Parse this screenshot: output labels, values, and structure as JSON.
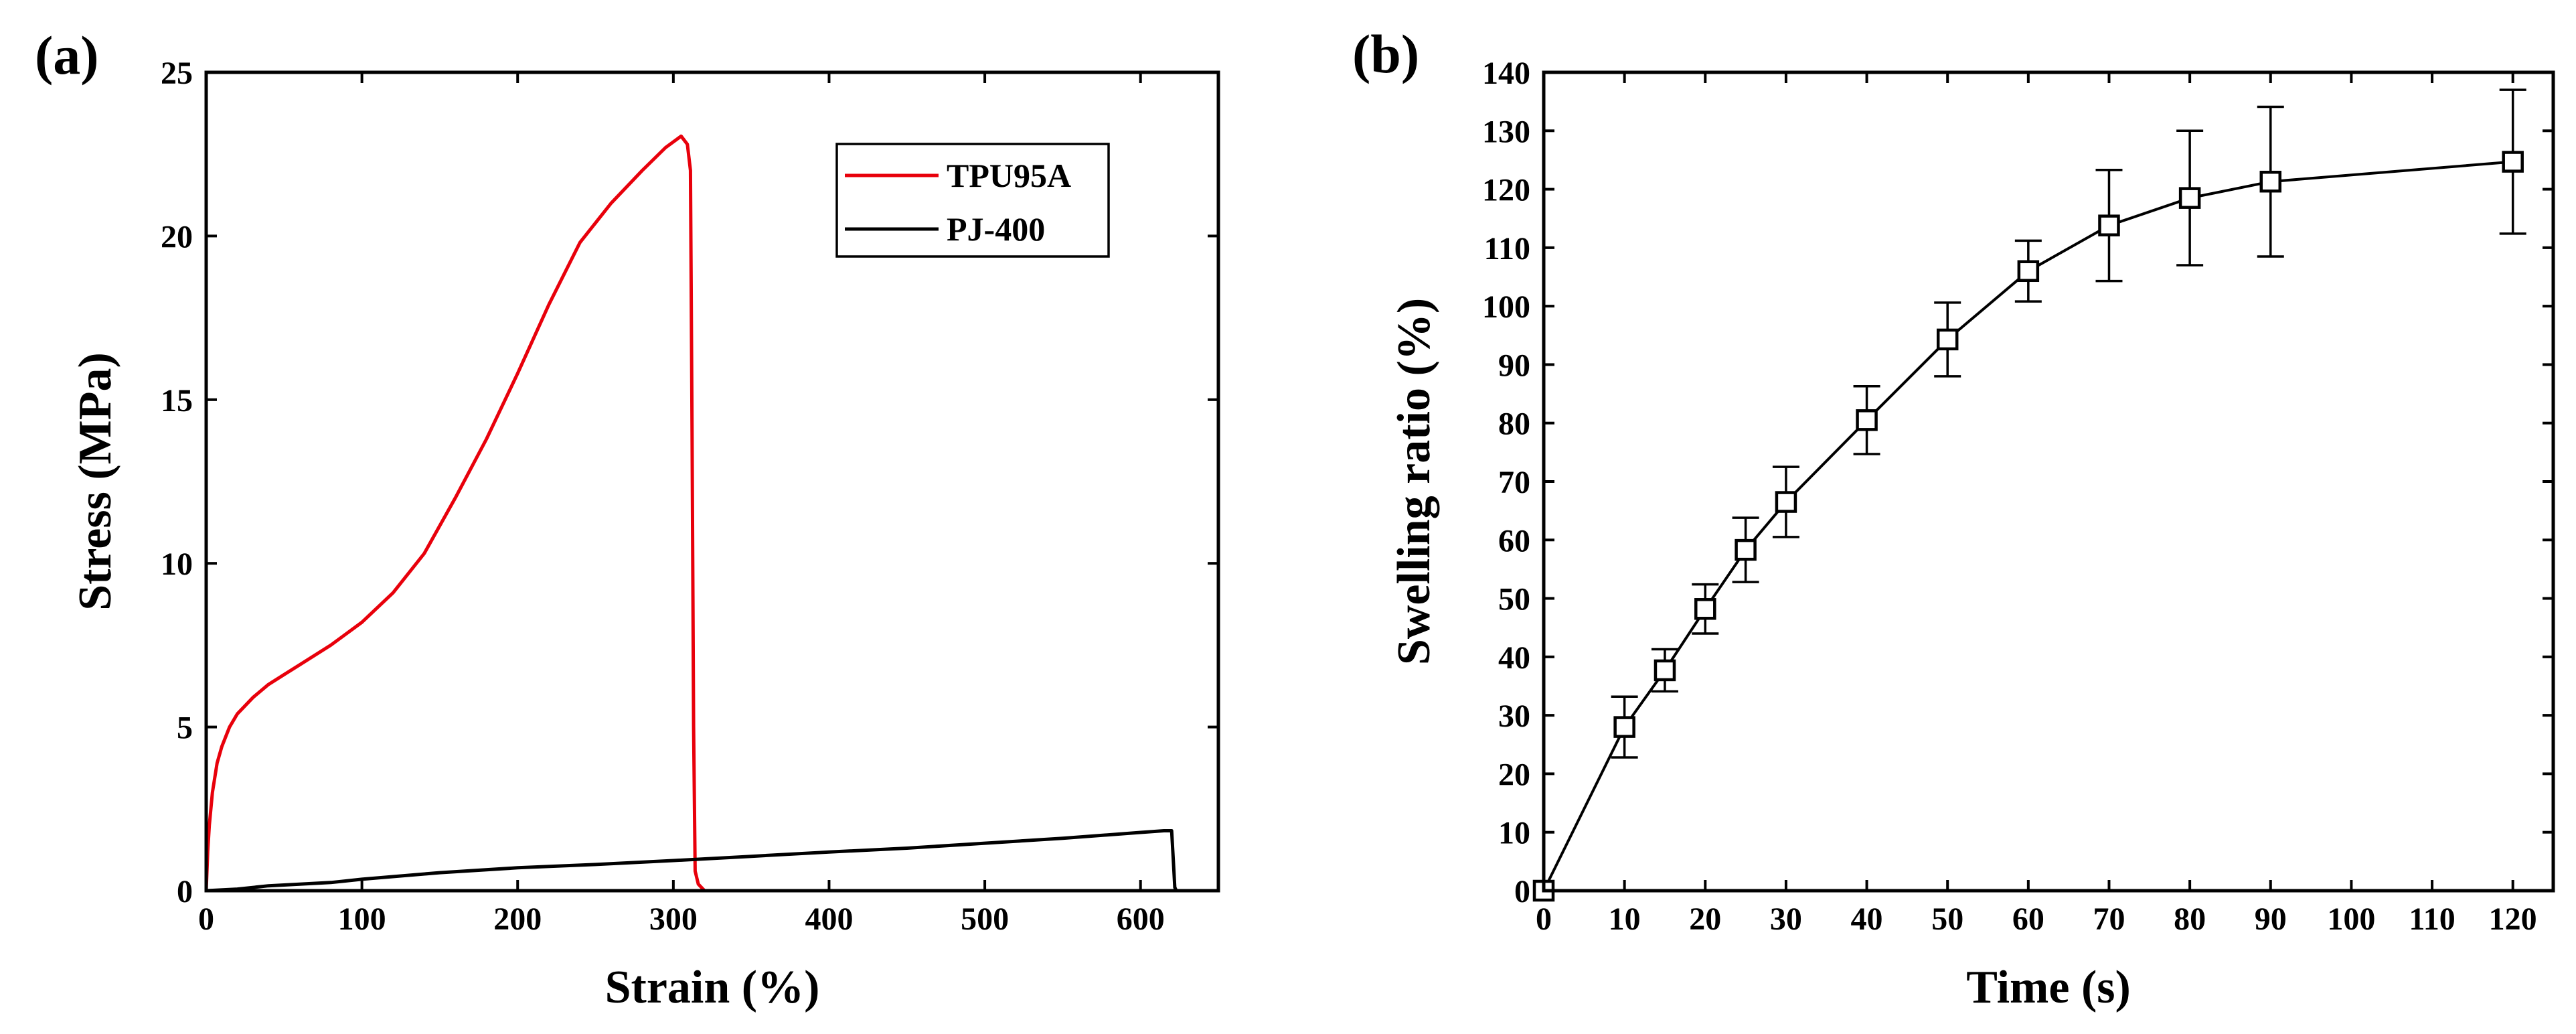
{
  "chart_data": [
    {
      "type": "line",
      "panel_label": "(a)",
      "title": "",
      "xlabel": "Strain (%)",
      "ylabel": "Stress (MPa)",
      "xlim": [
        0,
        650
      ],
      "ylim": [
        0,
        25
      ],
      "xticks": [
        0,
        100,
        200,
        300,
        400,
        500,
        600
      ],
      "yticks": [
        0,
        5,
        10,
        15,
        20,
        25
      ],
      "legend_position": "top-right",
      "series": [
        {
          "name": "TPU95A",
          "color": "#e8000b",
          "x": [
            0,
            1,
            2,
            4,
            7,
            10,
            15,
            20,
            30,
            40,
            50,
            60,
            80,
            100,
            120,
            140,
            160,
            180,
            200,
            220,
            240,
            260,
            280,
            295,
            305,
            309,
            311,
            312,
            313,
            314,
            316,
            320
          ],
          "y": [
            0,
            1.2,
            2.0,
            3.0,
            3.9,
            4.4,
            5.0,
            5.4,
            5.9,
            6.3,
            6.6,
            6.9,
            7.5,
            8.2,
            9.1,
            10.3,
            12.0,
            13.8,
            15.8,
            17.9,
            19.8,
            21.0,
            22.0,
            22.7,
            23.05,
            22.8,
            22.0,
            14.0,
            5.0,
            0.6,
            0.2,
            0.0
          ]
        },
        {
          "name": "PJ-400",
          "color": "#000000",
          "x": [
            0,
            20,
            40,
            60,
            80,
            100,
            150,
            200,
            250,
            300,
            350,
            400,
            450,
            500,
            550,
            600,
            615,
            620,
            621,
            622,
            623
          ],
          "y": [
            0,
            0.05,
            0.15,
            0.2,
            0.25,
            0.35,
            0.55,
            0.7,
            0.8,
            0.92,
            1.05,
            1.18,
            1.3,
            1.45,
            1.6,
            1.78,
            1.83,
            1.83,
            1.0,
            0.1,
            0.0
          ]
        }
      ]
    },
    {
      "type": "scatter",
      "panel_label": "(b)",
      "title": "",
      "xlabel": "Time (s)",
      "ylabel": "Swelling ratio (%)",
      "xlim": [
        0,
        125
      ],
      "ylim": [
        0,
        140
      ],
      "xticks": [
        0,
        10,
        20,
        30,
        40,
        50,
        60,
        70,
        80,
        90,
        100,
        110,
        120
      ],
      "yticks": [
        0,
        10,
        20,
        30,
        40,
        50,
        60,
        70,
        80,
        90,
        100,
        110,
        120,
        130,
        140
      ],
      "series": [
        {
          "name": "Swelling ratio",
          "color": "#000000",
          "marker": "open-square",
          "x": [
            0,
            10,
            15,
            20,
            25,
            30,
            40,
            50,
            60,
            70,
            80,
            90,
            120
          ],
          "y": [
            0,
            28,
            37.7,
            48.2,
            58.3,
            66.5,
            80.5,
            94.3,
            106,
            113.8,
            118.5,
            121.3,
            124.7
          ],
          "error": [
            0,
            5.2,
            3.6,
            4.2,
            5.5,
            6.0,
            5.8,
            6.3,
            5.2,
            9.5,
            11.5,
            12.8,
            12.3
          ]
        }
      ]
    }
  ]
}
